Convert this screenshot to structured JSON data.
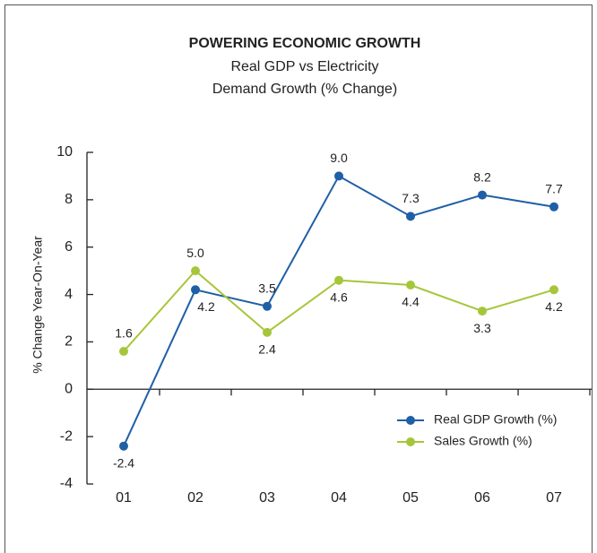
{
  "chart_data": {
    "type": "line",
    "title": "POWERING ECONOMIC GROWTH",
    "subtitle": [
      "Real GDP vs Electricity",
      "Demand Growth (% Change)"
    ],
    "y_label": "% Change Year-On-Year",
    "categories": [
      "01",
      "02",
      "03",
      "04",
      "05",
      "06",
      "07"
    ],
    "series": [
      {
        "name": "Real GDP Growth (%)",
        "color": "#1f5fa6",
        "values": [
          -2.4,
          4.2,
          3.5,
          9.0,
          7.3,
          8.2,
          7.7
        ],
        "value_labels": [
          "-2.4",
          "4.2",
          "3.5",
          "9.0",
          "7.3",
          "8.2",
          "7.7"
        ]
      },
      {
        "name": "Sales Growth (%)",
        "color": "#a6c63a",
        "values": [
          1.6,
          5.0,
          2.4,
          4.6,
          4.4,
          3.3,
          4.2
        ],
        "value_labels": [
          "1.6",
          "5.0",
          "2.4",
          "4.6",
          "4.4",
          "3.3",
          "4.2"
        ]
      }
    ],
    "ylim": [
      -4,
      10
    ],
    "yticks": [
      -4,
      -2,
      0,
      2,
      4,
      6,
      8,
      10
    ]
  }
}
